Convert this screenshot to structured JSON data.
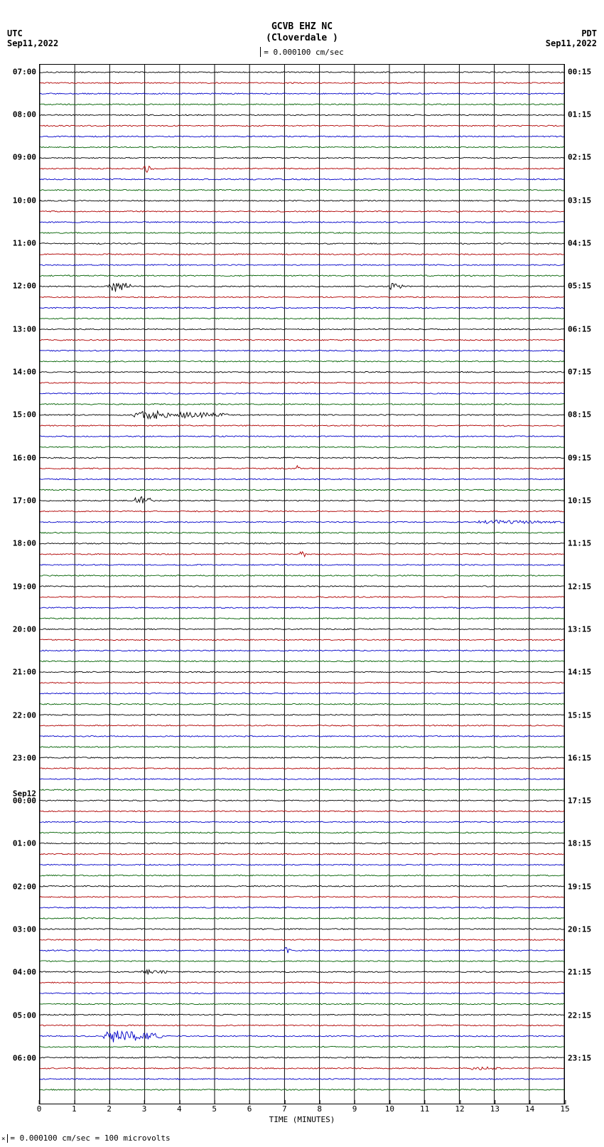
{
  "header": {
    "title": "GCVB EHZ NC",
    "subtitle": "(Cloverdale )",
    "scale_text": "= 0.000100 cm/sec",
    "left_tz": "UTC",
    "left_date": "Sep11,2022",
    "right_tz": "PDT",
    "right_date": "Sep11,2022"
  },
  "footer": {
    "note": "= 0.000100 cm/sec =    100 microvolts"
  },
  "plot": {
    "background_color": "#ffffff",
    "grid_color": "#000000",
    "x_label": "TIME (MINUTES)",
    "x_min": 0,
    "x_max": 15,
    "x_ticks": [
      0,
      1,
      2,
      3,
      4,
      5,
      6,
      7,
      8,
      9,
      10,
      11,
      12,
      13,
      14,
      15
    ],
    "traces_per_hour": 4,
    "total_traces": 96,
    "trace_colors": [
      "#000000",
      "#b00000",
      "#0000c8",
      "#006000"
    ],
    "noise_amplitude": 1.0,
    "left_hours": [
      {
        "t": "07:00",
        "row": 0
      },
      {
        "t": "08:00",
        "row": 4
      },
      {
        "t": "09:00",
        "row": 8
      },
      {
        "t": "10:00",
        "row": 12
      },
      {
        "t": "11:00",
        "row": 16
      },
      {
        "t": "12:00",
        "row": 20
      },
      {
        "t": "13:00",
        "row": 24
      },
      {
        "t": "14:00",
        "row": 28
      },
      {
        "t": "15:00",
        "row": 32
      },
      {
        "t": "16:00",
        "row": 36
      },
      {
        "t": "17:00",
        "row": 40
      },
      {
        "t": "18:00",
        "row": 44
      },
      {
        "t": "19:00",
        "row": 48
      },
      {
        "t": "20:00",
        "row": 52
      },
      {
        "t": "21:00",
        "row": 56
      },
      {
        "t": "22:00",
        "row": 60
      },
      {
        "t": "23:00",
        "row": 64
      },
      {
        "t": "Sep12",
        "row": 67.3
      },
      {
        "t": "00:00",
        "row": 68
      },
      {
        "t": "01:00",
        "row": 72
      },
      {
        "t": "02:00",
        "row": 76
      },
      {
        "t": "03:00",
        "row": 80
      },
      {
        "t": "04:00",
        "row": 84
      },
      {
        "t": "05:00",
        "row": 88
      },
      {
        "t": "06:00",
        "row": 92
      }
    ],
    "right_hours": [
      {
        "t": "00:15",
        "row": 0
      },
      {
        "t": "01:15",
        "row": 4
      },
      {
        "t": "02:15",
        "row": 8
      },
      {
        "t": "03:15",
        "row": 12
      },
      {
        "t": "04:15",
        "row": 16
      },
      {
        "t": "05:15",
        "row": 20
      },
      {
        "t": "06:15",
        "row": 24
      },
      {
        "t": "07:15",
        "row": 28
      },
      {
        "t": "08:15",
        "row": 32
      },
      {
        "t": "09:15",
        "row": 36
      },
      {
        "t": "10:15",
        "row": 40
      },
      {
        "t": "11:15",
        "row": 44
      },
      {
        "t": "12:15",
        "row": 48
      },
      {
        "t": "13:15",
        "row": 52
      },
      {
        "t": "14:15",
        "row": 56
      },
      {
        "t": "15:15",
        "row": 60
      },
      {
        "t": "16:15",
        "row": 64
      },
      {
        "t": "17:15",
        "row": 68
      },
      {
        "t": "18:15",
        "row": 72
      },
      {
        "t": "19:15",
        "row": 76
      },
      {
        "t": "20:15",
        "row": 80
      },
      {
        "t": "21:15",
        "row": 84
      },
      {
        "t": "22:15",
        "row": 88
      },
      {
        "t": "23:15",
        "row": 92
      }
    ],
    "events": [
      {
        "row": 9,
        "x_min": 2.95,
        "x_max": 3.25,
        "amp": 7,
        "duration": 0.3
      },
      {
        "row": 20,
        "x_min": 1.9,
        "x_max": 2.6,
        "amp": 9,
        "duration": 0.7
      },
      {
        "row": 20,
        "x_min": 10.0,
        "x_max": 10.4,
        "amp": 6,
        "duration": 0.4
      },
      {
        "row": 32,
        "x_min": 2.6,
        "x_max": 5.4,
        "amp": 6,
        "duration": 2.8
      },
      {
        "row": 37,
        "x_min": 7.35,
        "x_max": 7.45,
        "amp": 6,
        "duration": 0.1
      },
      {
        "row": 40,
        "x_min": 2.7,
        "x_max": 3.3,
        "amp": 7,
        "duration": 0.6
      },
      {
        "row": 42,
        "x_min": 12.4,
        "x_max": 15.0,
        "amp": 3,
        "duration": 2.6
      },
      {
        "row": 45,
        "x_min": 7.45,
        "x_max": 7.6,
        "amp": 7,
        "duration": 0.15
      },
      {
        "row": 82,
        "x_min": 7.0,
        "x_max": 7.2,
        "amp": 5,
        "duration": 0.2
      },
      {
        "row": 84,
        "x_min": 2.9,
        "x_max": 3.7,
        "amp": 4,
        "duration": 0.8
      },
      {
        "row": 90,
        "x_min": 1.8,
        "x_max": 3.5,
        "amp": 9,
        "duration": 1.7
      },
      {
        "row": 93,
        "x_min": 12.3,
        "x_max": 13.2,
        "amp": 3,
        "duration": 0.9
      }
    ]
  }
}
